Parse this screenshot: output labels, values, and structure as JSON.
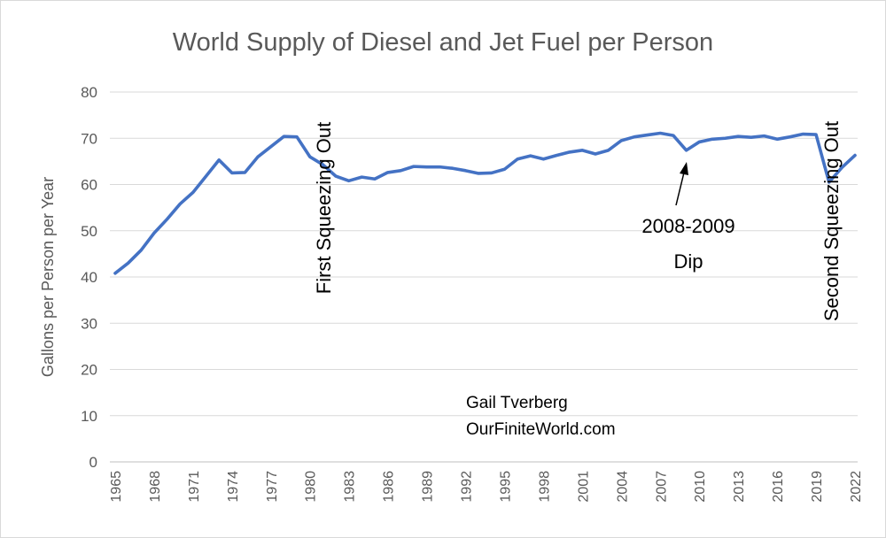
{
  "chart_data": {
    "type": "line",
    "title": "World Supply of Diesel and Jet Fuel per Person",
    "xlabel": "",
    "ylabel": "Gallons per Person per Year",
    "ylim": [
      0,
      80
    ],
    "yticks": [
      0,
      10,
      20,
      30,
      40,
      50,
      60,
      70,
      80
    ],
    "xticks": [
      "1965",
      "1968",
      "1971",
      "1974",
      "1977",
      "1980",
      "1983",
      "1986",
      "1989",
      "1992",
      "1995",
      "1998",
      "2001",
      "2004",
      "2007",
      "2010",
      "2013",
      "2016",
      "2019",
      "2022"
    ],
    "grid": true,
    "legend": "none",
    "line_color": "#4472c4",
    "x": [
      1965,
      1966,
      1967,
      1968,
      1969,
      1970,
      1971,
      1972,
      1973,
      1974,
      1975,
      1976,
      1977,
      1978,
      1979,
      1980,
      1981,
      1982,
      1983,
      1984,
      1985,
      1986,
      1987,
      1988,
      1989,
      1990,
      1991,
      1992,
      1993,
      1994,
      1995,
      1996,
      1997,
      1998,
      1999,
      2000,
      2001,
      2002,
      2003,
      2004,
      2005,
      2006,
      2007,
      2008,
      2009,
      2010,
      2011,
      2012,
      2013,
      2014,
      2015,
      2016,
      2017,
      2018,
      2019,
      2020,
      2021,
      2022
    ],
    "series": [
      {
        "values": [
          40.8,
          43.0,
          45.8,
          49.5,
          52.5,
          55.8,
          58.3,
          61.8,
          65.3,
          62.5,
          62.6,
          66.0,
          68.2,
          70.4,
          70.3,
          66.0,
          64.3,
          61.8,
          60.8,
          61.6,
          61.2,
          62.6,
          63.0,
          63.9,
          63.8,
          63.8,
          63.5,
          63.0,
          62.4,
          62.5,
          63.3,
          65.5,
          66.2,
          65.5,
          66.3,
          67.0,
          67.4,
          66.6,
          67.4,
          69.5,
          70.3,
          70.7,
          71.1,
          70.6,
          67.4,
          69.2,
          69.8,
          70.0,
          70.4,
          70.2,
          70.5,
          69.8,
          70.3,
          70.9,
          70.8,
          60.5,
          63.7,
          66.3
        ]
      }
    ],
    "annotations": {
      "first_squeezing": "First Squeezing Out",
      "second_squeezing": "Second Squeezing Out",
      "dip_line1": "2008-2009",
      "dip_line2": "Dip",
      "credit_line1": "Gail Tverberg",
      "credit_line2": "OurFiniteWorld.com"
    }
  }
}
